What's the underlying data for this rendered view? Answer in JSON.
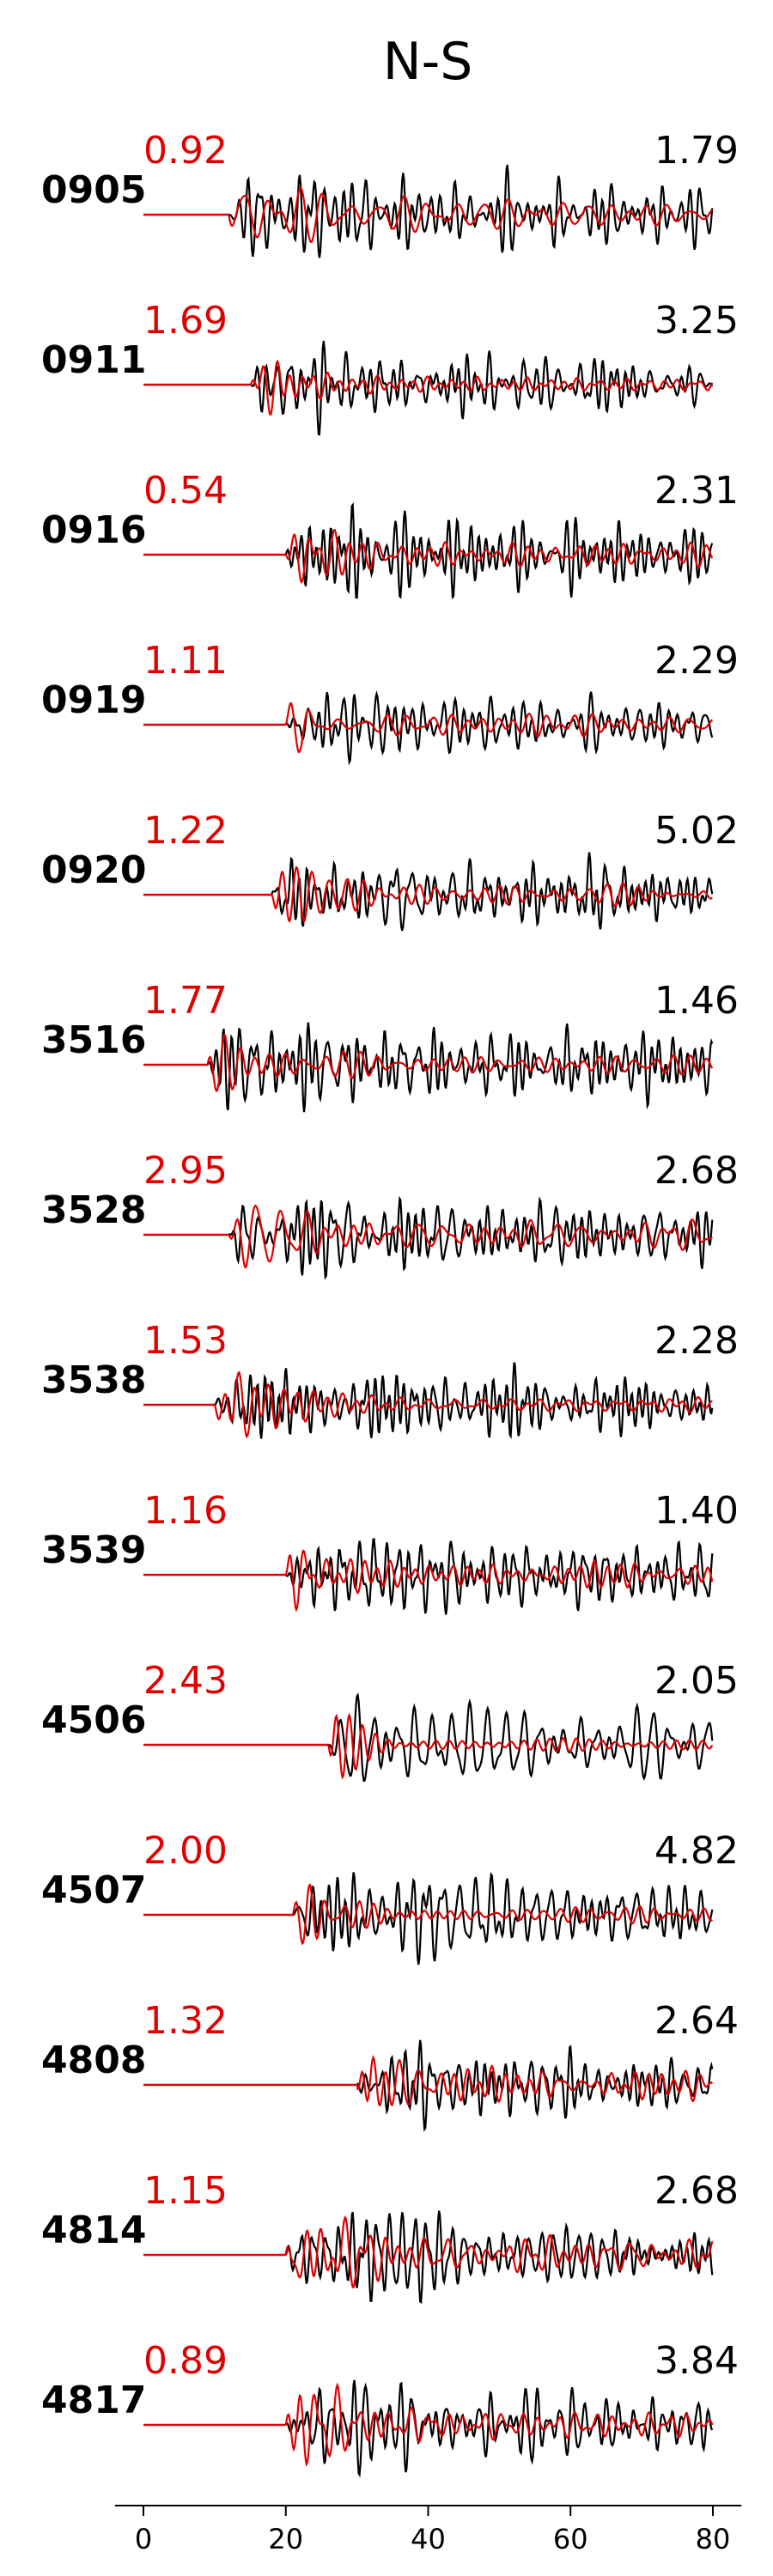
{
  "chart_data": {
    "type": "line",
    "title": "N-S",
    "x_ticks": [
      0,
      20,
      40,
      60,
      80
    ],
    "xlim": [
      -4,
      84
    ],
    "colors": {
      "observed": "#000000",
      "synthetic": "#e00000"
    },
    "traces": [
      {
        "station": "0905",
        "amp_left": "0.92",
        "amp_right": "1.79",
        "onset": 12,
        "black_amp": 1.0,
        "red_amp": 0.55,
        "red_decay": 0.9,
        "seed": 1
      },
      {
        "station": "0911",
        "amp_left": "1.69",
        "amp_right": "3.25",
        "onset": 15,
        "black_amp": 1.0,
        "red_amp": 0.6,
        "red_decay": 0.85,
        "seed": 2
      },
      {
        "station": "0916",
        "amp_left": "0.54",
        "amp_right": "2.31",
        "onset": 20,
        "black_amp": 1.0,
        "red_amp": 0.55,
        "red_decay": 0.8,
        "seed": 3
      },
      {
        "station": "0919",
        "amp_left": "1.11",
        "amp_right": "2.29",
        "onset": 20,
        "black_amp": 0.75,
        "red_amp": 0.55,
        "red_decay": 0.85,
        "seed": 4
      },
      {
        "station": "0920",
        "amp_left": "1.22",
        "amp_right": "5.02",
        "onset": 18,
        "black_amp": 0.85,
        "red_amp": 0.55,
        "red_decay": 0.9,
        "seed": 5
      },
      {
        "station": "3516",
        "amp_left": "1.77",
        "amp_right": "1.46",
        "onset": 9,
        "black_amp": 0.95,
        "red_amp": 0.6,
        "red_decay": 0.9,
        "seed": 6
      },
      {
        "station": "3528",
        "amp_left": "2.95",
        "amp_right": "2.68",
        "onset": 12,
        "black_amp": 0.85,
        "red_amp": 0.65,
        "red_decay": 0.85,
        "seed": 7
      },
      {
        "station": "3538",
        "amp_left": "1.53",
        "amp_right": "2.28",
        "onset": 10,
        "black_amp": 0.85,
        "red_amp": 0.65,
        "red_decay": 0.9,
        "seed": 8
      },
      {
        "station": "3539",
        "amp_left": "1.16",
        "amp_right": "1.40",
        "onset": 20,
        "black_amp": 0.8,
        "red_amp": 0.7,
        "red_decay": 0.85,
        "seed": 9
      },
      {
        "station": "4506",
        "amp_left": "2.43",
        "amp_right": "2.05",
        "onset": 26,
        "black_amp": 1.0,
        "red_amp": 0.65,
        "red_decay": 0.85,
        "seed": 10
      },
      {
        "station": "4507",
        "amp_left": "2.00",
        "amp_right": "4.82",
        "onset": 21,
        "black_amp": 1.0,
        "red_amp": 0.6,
        "red_decay": 0.9,
        "seed": 11
      },
      {
        "station": "4808",
        "amp_left": "1.32",
        "amp_right": "2.64",
        "onset": 30,
        "black_amp": 0.9,
        "red_amp": 0.55,
        "red_decay": 0.85,
        "seed": 12
      },
      {
        "station": "4814",
        "amp_left": "1.15",
        "amp_right": "2.68",
        "onset": 20,
        "black_amp": 0.95,
        "red_amp": 0.75,
        "red_decay": 0.85,
        "seed": 13
      },
      {
        "station": "4817",
        "amp_left": "0.89",
        "amp_right": "3.84",
        "onset": 20,
        "black_amp": 1.0,
        "red_amp": 0.8,
        "red_decay": 0.9,
        "seed": 14
      }
    ]
  }
}
